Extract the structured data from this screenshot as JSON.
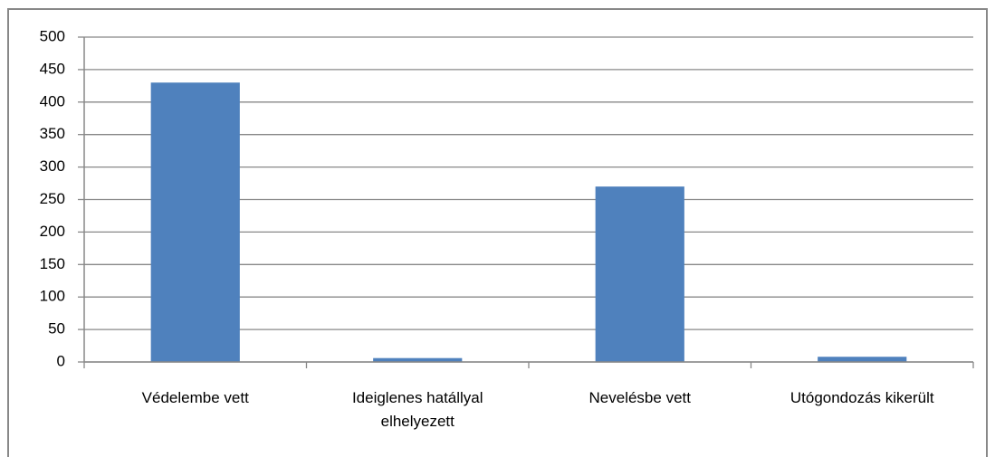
{
  "chart_data": {
    "type": "bar",
    "categories": [
      "Védelembe vett",
      "Ideiglenes hatállyal elhelyezett",
      "Nevelésbe vett",
      "Utógondozás kikerült"
    ],
    "values": [
      430,
      6,
      270,
      8
    ],
    "color": "#4f81bd",
    "ylim": [
      0,
      500
    ],
    "yticks": [
      0,
      50,
      100,
      150,
      200,
      250,
      300,
      350,
      400,
      450,
      500
    ],
    "grid": true
  }
}
